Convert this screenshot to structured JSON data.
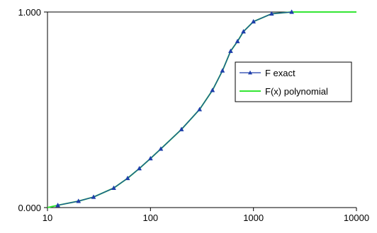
{
  "chart_data": {
    "type": "line",
    "xscale": "log",
    "xlim": [
      10,
      10000
    ],
    "ylim": [
      0,
      1
    ],
    "grid": false,
    "legend_position": "right",
    "x_tick_labels": [
      "10",
      "100",
      "1000",
      "10000"
    ],
    "y_tick_labels": [
      "0.000",
      "1.000"
    ],
    "series": [
      {
        "name": "F exact",
        "color": "#1f3faa",
        "marker": "triangle",
        "x": [
          12.6,
          20,
          28,
          44,
          60,
          78,
          100,
          126,
          200,
          300,
          400,
          500,
          600,
          700,
          800,
          1000,
          1500,
          2350
        ],
        "y": [
          0.012,
          0.033,
          0.054,
          0.1,
          0.15,
          0.2,
          0.251,
          0.3,
          0.4,
          0.502,
          0.6,
          0.7,
          0.8,
          0.85,
          0.9,
          0.951,
          0.991,
          1.0
        ]
      },
      {
        "name": "F(x) polynomial",
        "color": "#33e633",
        "marker": "none",
        "x": [
          10,
          12.6,
          20,
          28,
          44,
          60,
          78,
          100,
          126,
          200,
          300,
          400,
          500,
          600,
          700,
          800,
          1000,
          1500,
          2350,
          3000,
          10000
        ],
        "y": [
          0.0,
          0.012,
          0.033,
          0.054,
          0.1,
          0.15,
          0.2,
          0.251,
          0.3,
          0.4,
          0.502,
          0.6,
          0.7,
          0.8,
          0.85,
          0.9,
          0.951,
          0.991,
          1.0,
          1.0,
          1.0
        ]
      }
    ]
  }
}
